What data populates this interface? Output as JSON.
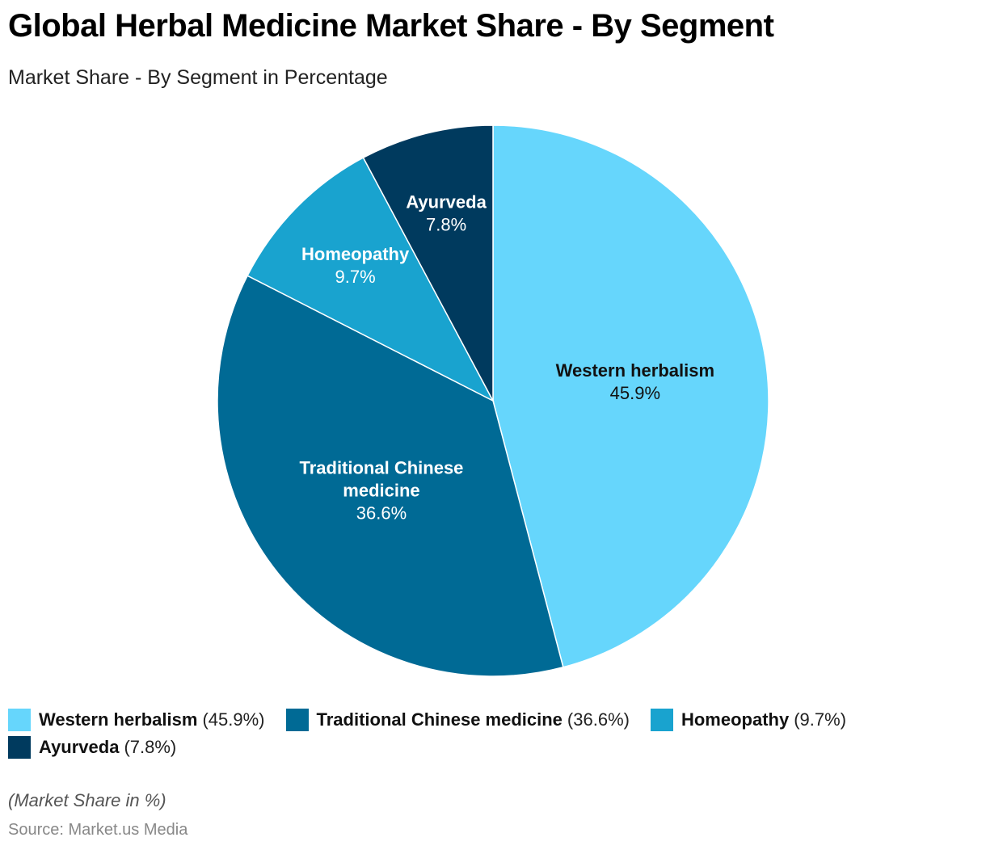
{
  "header": {
    "title": "Global Herbal Medicine Market Share - By Segment",
    "subtitle": "Market Share - By Segment in Percentage"
  },
  "footer": {
    "note": "(Market Share in %)",
    "source": "Source: Market.us Media"
  },
  "chart_data": {
    "type": "pie",
    "title": "Global Herbal Medicine Market Share - By Segment",
    "subtitle": "Market Share - By Segment in Percentage",
    "unit": "%",
    "legend_position": "bottom",
    "slices": [
      {
        "label": "Western herbalism",
        "label_lines": [
          "Western herbalism"
        ],
        "value": 45.9,
        "display": "45.9%",
        "legend_value": "(45.9%)",
        "color": "#66d6fc",
        "text_color": "#111111"
      },
      {
        "label": "Traditional Chinese medicine",
        "label_lines": [
          "Traditional Chinese",
          "medicine"
        ],
        "value": 36.6,
        "display": "36.6%",
        "legend_value": "(36.6%)",
        "color": "#006a95",
        "text_color": "#ffffff"
      },
      {
        "label": "Homeopathy",
        "label_lines": [
          "Homeopathy"
        ],
        "value": 9.7,
        "display": "9.7%",
        "legend_value": "(9.7%)",
        "color": "#19a3cf",
        "text_color": "#ffffff"
      },
      {
        "label": "Ayurveda",
        "label_lines": [
          "Ayurveda"
        ],
        "value": 7.8,
        "display": "7.8%",
        "legend_value": "(7.8%)",
        "color": "#003a5e",
        "text_color": "#ffffff"
      }
    ]
  }
}
